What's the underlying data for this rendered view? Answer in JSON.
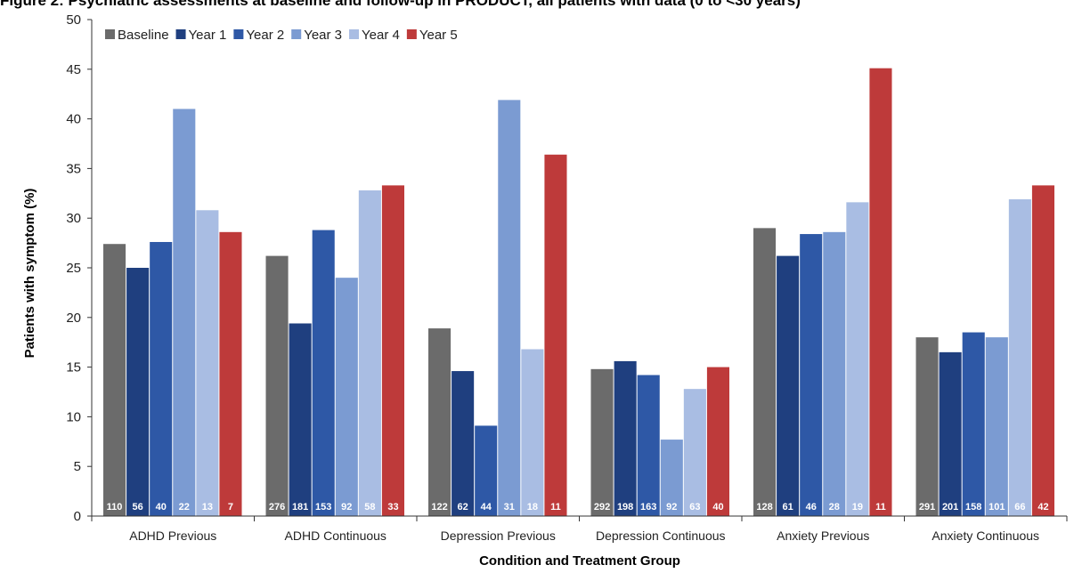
{
  "figure": {
    "caption": "Figure 2: Psychiatric assessments at baseline and follow-up in PRODUCT, all patients with data (0 to <30 years)"
  },
  "chart_data": {
    "type": "bar",
    "title": "",
    "xlabel": "Condition and Treatment Group",
    "ylabel": "Patients with symptom (%)",
    "ylim": [
      0,
      50
    ],
    "yticks": [
      0,
      5,
      10,
      15,
      20,
      25,
      30,
      35,
      40,
      45,
      50
    ],
    "grid": false,
    "legend_position": "top-left",
    "categories": [
      "ADHD Previous",
      "ADHD Continuous",
      "Depression Previous",
      "Depression Continuous",
      "Anxiety Previous",
      "Anxiety Continuous"
    ],
    "series": [
      {
        "name": "Baseline",
        "color": "#6b6b6b",
        "values": [
          27.4,
          26.2,
          18.9,
          14.8,
          29.0,
          18.0
        ],
        "n": [
          "110",
          "276",
          "122",
          "292",
          "128",
          "291"
        ]
      },
      {
        "name": "Year 1",
        "color": "#1f3f7f",
        "values": [
          25.0,
          19.4,
          14.6,
          15.6,
          26.2,
          16.5
        ],
        "n": [
          "56",
          "181",
          "62",
          "198",
          "61",
          "201"
        ]
      },
      {
        "name": "Year 2",
        "color": "#2e58a6",
        "values": [
          27.6,
          28.8,
          9.1,
          14.2,
          28.4,
          18.5
        ],
        "n": [
          "40",
          "153",
          "44",
          "163",
          "46",
          "158"
        ]
      },
      {
        "name": "Year 3",
        "color": "#7b9bd2",
        "values": [
          41.0,
          24.0,
          41.9,
          7.7,
          28.6,
          18.0
        ],
        "n": [
          "22",
          "92",
          "31",
          "92",
          "28",
          "101"
        ]
      },
      {
        "name": "Year 4",
        "color": "#a9bde3",
        "values": [
          30.8,
          32.8,
          16.8,
          12.8,
          31.6,
          31.9
        ],
        "n": [
          "13",
          "58",
          "18",
          "63",
          "19",
          "66"
        ]
      },
      {
        "name": "Year 5",
        "color": "#be3a3a",
        "values": [
          28.6,
          33.3,
          36.4,
          15.0,
          45.1,
          33.3
        ],
        "n": [
          "7",
          "33",
          "11",
          "40",
          "11",
          "42"
        ]
      }
    ]
  }
}
